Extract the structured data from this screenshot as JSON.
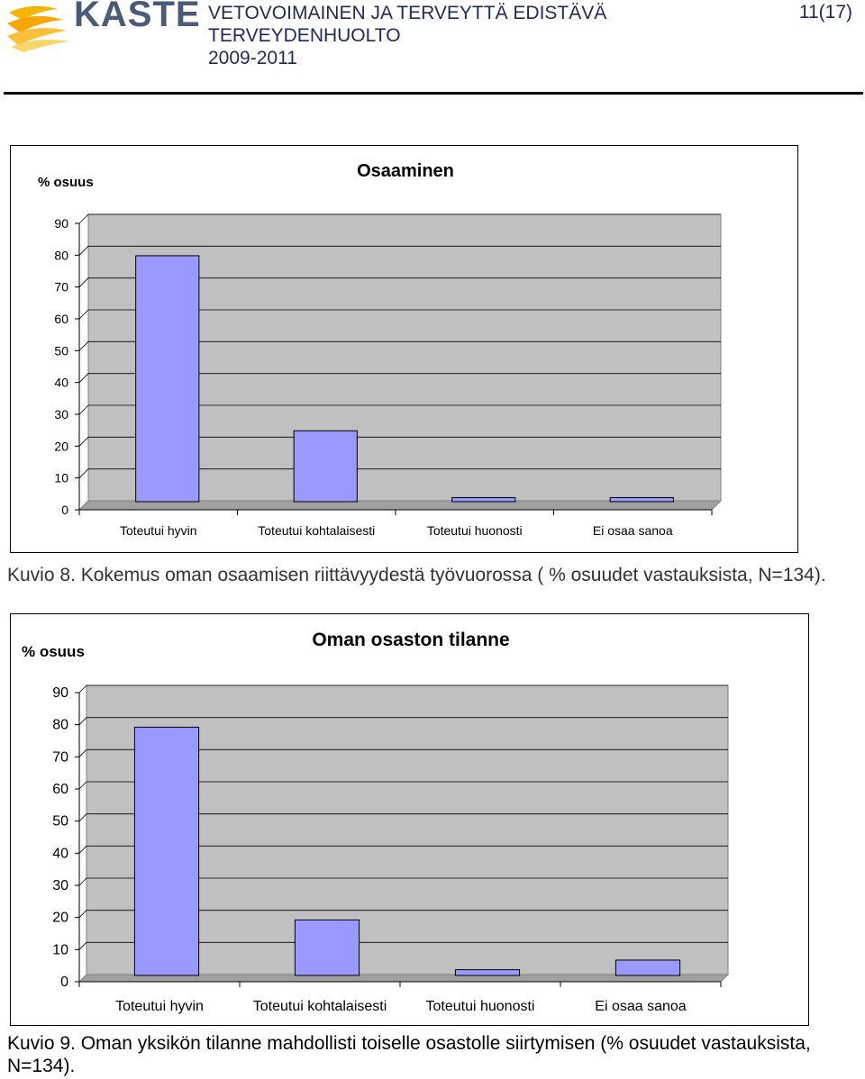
{
  "header": {
    "logo_text": "KASTE",
    "title_lines": [
      "VETOVOIMAINEN JA TERVEYTTÄ EDISTÄVÄ",
      "TERVEYDENHUOLTO",
      "2009-2011"
    ],
    "page_number": "11(17)"
  },
  "figures": [
    {
      "caption": "Kuvio 8. Kokemus oman osaamisen riittävyydestä työvuorossa ( % osuudet vastauksista, N=134).",
      "chart_data": {
        "type": "bar",
        "title": "Osaaminen",
        "ylabel": "% osuus",
        "xlabel": "",
        "categories": [
          "Toteutui hyvin",
          "Toteutui kohtalaisesti",
          "Toteutui huonosti",
          "Ei osaa sanoa"
        ],
        "values": [
          77,
          22,
          1,
          1
        ],
        "ylim": [
          0,
          90
        ],
        "yticks": [
          0,
          10,
          20,
          30,
          40,
          50,
          60,
          70,
          80,
          90
        ],
        "grid": true,
        "bar_color": "#9999ff",
        "plot_background": "#c0c0c0"
      }
    },
    {
      "caption": "Kuvio 9. Oman yksikön tilanne mahdollisti toiselle osastolle siirtymisen (% osuudet vastauksista, N=134).",
      "chart_data": {
        "type": "bar",
        "title": "Oman osaston tilanne",
        "ylabel": "% osuus",
        "xlabel": "",
        "categories": [
          "Toteutui hyvin",
          "Toteutui kohtalaisesti",
          "Toteutui huonosti",
          "Ei osaa sanoa"
        ],
        "values": [
          77,
          17,
          1.5,
          4.5
        ],
        "ylim": [
          0,
          90
        ],
        "yticks": [
          0,
          10,
          20,
          30,
          40,
          50,
          60,
          70,
          80,
          90
        ],
        "grid": true,
        "bar_color": "#9999ff",
        "plot_background": "#c0c0c0"
      }
    }
  ]
}
